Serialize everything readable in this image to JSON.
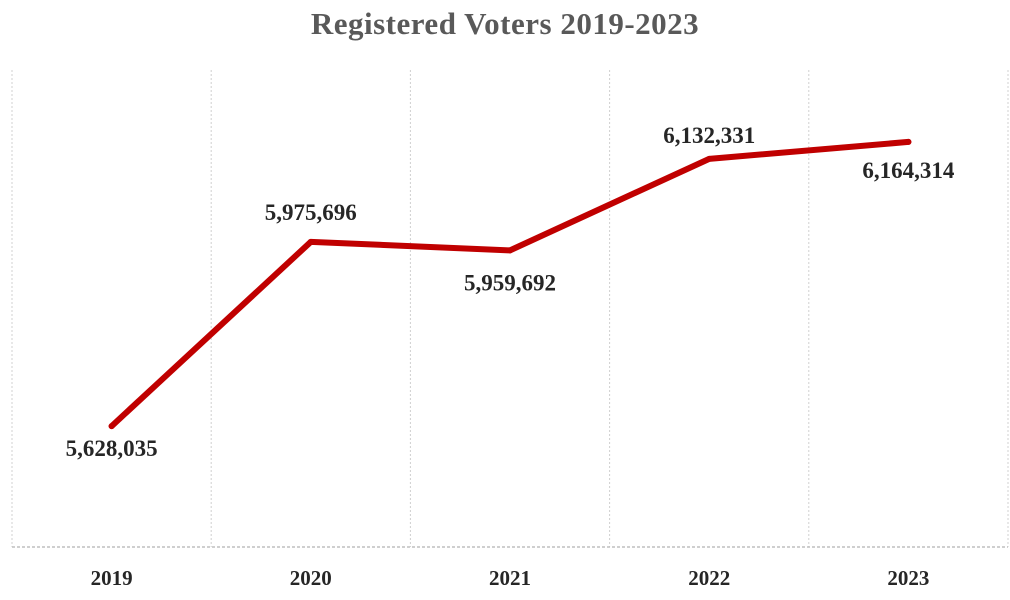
{
  "chart_data": {
    "type": "line",
    "title": "Registered Voters 2019-2023",
    "xlabel": "",
    "ylabel": "",
    "categories": [
      "2019",
      "2020",
      "2021",
      "2022",
      "2023"
    ],
    "series": [
      {
        "values": [
          5628035,
          5975696,
          5959692,
          6132331,
          6164314
        ],
        "labels": [
          "5,628,035",
          "5,975,696",
          "5,959,692",
          "6,132,331",
          "6,164,314"
        ],
        "color": "#c00000"
      }
    ],
    "ylim": [
      5400000,
      6300000
    ],
    "grid": "vertical dotted",
    "legend": "none"
  }
}
